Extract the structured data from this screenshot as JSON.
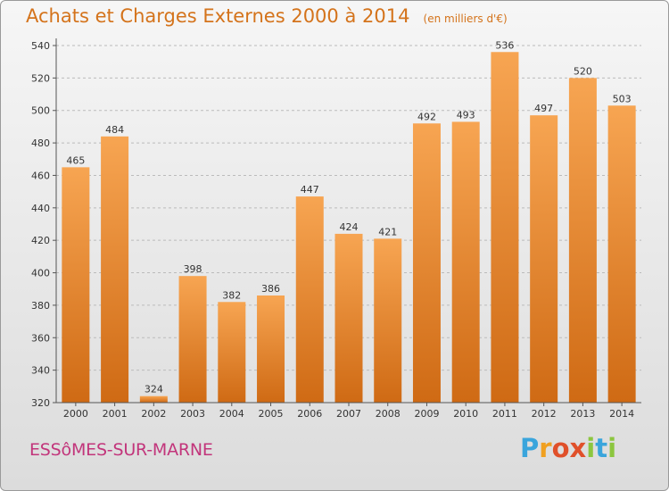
{
  "header": {
    "title": "Achats et Charges Externes 2000 à 2014",
    "unit": "(en milliers d'€)"
  },
  "footer": {
    "commune": "ESSôMES-SUR-MARNE",
    "logo": {
      "text": "Proxiti",
      "letters": [
        {
          "ch": "P",
          "color": "#3aa5dc"
        },
        {
          "ch": "r",
          "color": "#f0a020"
        },
        {
          "ch": "o",
          "color": "#e0502a"
        },
        {
          "ch": "x",
          "color": "#e0502a"
        },
        {
          "ch": "i",
          "color": "#8cc63f"
        },
        {
          "ch": "t",
          "color": "#3aa5dc"
        },
        {
          "ch": "i",
          "color": "#8cc63f"
        }
      ]
    }
  },
  "colors": {
    "bar_light": "#f7a552",
    "bar_dark": "#cf6a14",
    "axis": "#555555",
    "grid": "#bbbbbb",
    "text": "#333333"
  },
  "chart_data": {
    "type": "bar",
    "categories": [
      "2000",
      "2001",
      "2002",
      "2003",
      "2004",
      "2005",
      "2006",
      "2007",
      "2008",
      "2009",
      "2010",
      "2011",
      "2012",
      "2013",
      "2014"
    ],
    "values": [
      465,
      484,
      324,
      398,
      382,
      386,
      447,
      424,
      421,
      492,
      493,
      536,
      497,
      520,
      503
    ],
    "title": "Achats et Charges Externes 2000 à 2014",
    "xlabel": "",
    "ylabel": "",
    "ylim": [
      320,
      540
    ],
    "yticks": [
      320,
      340,
      360,
      380,
      400,
      420,
      440,
      460,
      480,
      500,
      520,
      540
    ],
    "grid": true,
    "data_labels": true
  }
}
